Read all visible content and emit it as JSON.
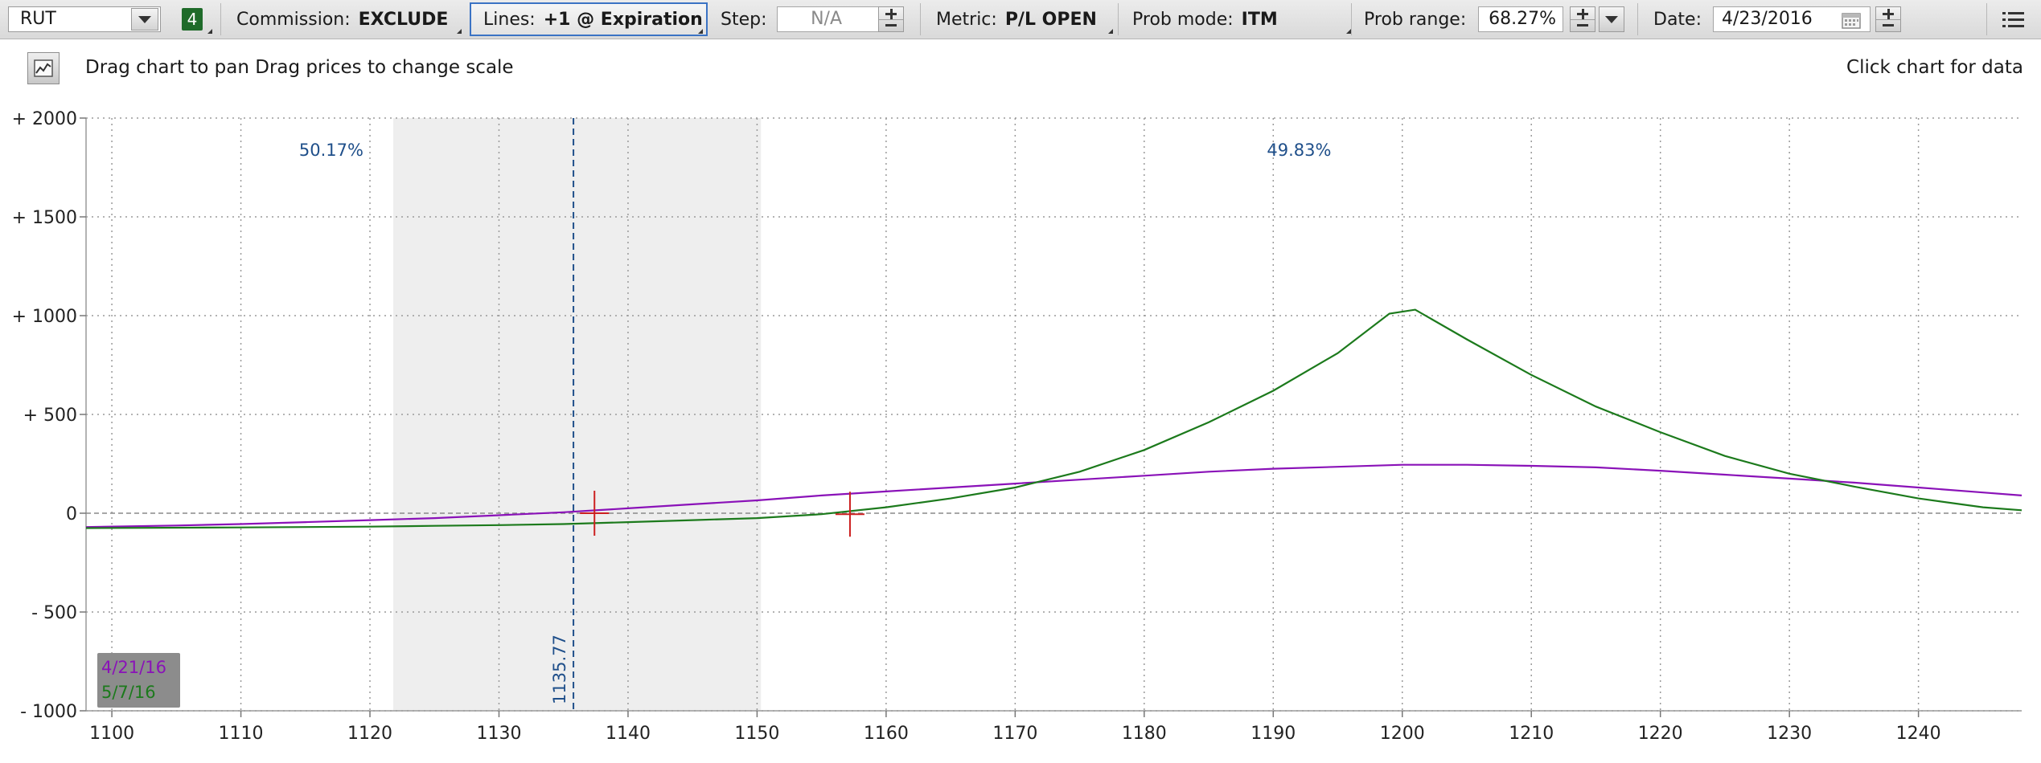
{
  "toolbar": {
    "symbol": "RUT",
    "badge": "4",
    "commission_label": "Commission:",
    "commission_value": "EXCLUDE",
    "lines_label": "Lines:",
    "lines_value": "+1 @ Expiration",
    "step_label": "Step:",
    "step_value": "N/A",
    "metric_label": "Metric:",
    "metric_value": "P/L OPEN",
    "prob_mode_label": "Prob mode:",
    "prob_mode_value": "ITM",
    "prob_range_label": "Prob range:",
    "prob_range_value": "68.27%",
    "date_label": "Date:",
    "date_value": "4/23/2016"
  },
  "infobar": {
    "hint": "Drag chart to pan Drag prices to change scale",
    "click_hint": "Click chart for data"
  },
  "colors": {
    "series_1": "#8a12b8",
    "series_2": "#1c7a1c",
    "marker": "#cc2020",
    "price_line": "#1f4f8a",
    "shade": "#eeeeee",
    "legend_bg": "#8c8c8c"
  },
  "chart_data": {
    "type": "line",
    "xlim": [
      1098,
      1248
    ],
    "ylim": [
      -1000,
      2000
    ],
    "x_ticks": [
      1100,
      1110,
      1120,
      1130,
      1140,
      1150,
      1160,
      1170,
      1180,
      1190,
      1200,
      1210,
      1220,
      1230,
      1240
    ],
    "y_ticks": [
      {
        "value": 2000,
        "label": "+ 2000"
      },
      {
        "value": 1500,
        "label": "+ 1500"
      },
      {
        "value": 1000,
        "label": "+ 1000"
      },
      {
        "value": 500,
        "label": "+ 500"
      },
      {
        "value": 0,
        "label": "0"
      },
      {
        "value": -500,
        "label": "- 500"
      },
      {
        "value": -1000,
        "label": "- 1000"
      }
    ],
    "grid": true,
    "shaded_range": [
      1121.8,
      1150.3
    ],
    "price_line": {
      "x": 1135.77,
      "label": "1135.77"
    },
    "probabilities": [
      {
        "label": "50.17%",
        "x": 1117
      },
      {
        "label": "49.83%",
        "x": 1192
      }
    ],
    "markers": [
      {
        "x": 1137.4,
        "y": 0
      },
      {
        "x": 1157.2,
        "y": -5
      }
    ],
    "series": [
      {
        "name": "4/21/16",
        "x": [
          1098,
          1105,
          1110,
          1115,
          1120,
          1125,
          1130,
          1135,
          1140,
          1145,
          1150,
          1155,
          1160,
          1165,
          1170,
          1175,
          1180,
          1185,
          1190,
          1195,
          1200,
          1205,
          1210,
          1215,
          1220,
          1225,
          1230,
          1235,
          1240,
          1245,
          1248
        ],
        "y": [
          -70,
          -62,
          -55,
          -45,
          -35,
          -25,
          -10,
          5,
          25,
          45,
          65,
          90,
          110,
          130,
          150,
          170,
          190,
          210,
          225,
          235,
          245,
          245,
          240,
          232,
          215,
          195,
          175,
          155,
          130,
          105,
          90
        ]
      },
      {
        "name": "5/7/16",
        "x": [
          1098,
          1110,
          1120,
          1125,
          1130,
          1135,
          1140,
          1145,
          1150,
          1155,
          1160,
          1165,
          1170,
          1175,
          1180,
          1185,
          1190,
          1195,
          1199,
          1201,
          1205,
          1210,
          1215,
          1220,
          1225,
          1230,
          1235,
          1240,
          1245,
          1248
        ],
        "y": [
          -75,
          -72,
          -68,
          -64,
          -60,
          -55,
          -45,
          -35,
          -25,
          -5,
          30,
          75,
          130,
          210,
          320,
          460,
          620,
          810,
          1010,
          1030,
          880,
          700,
          540,
          410,
          290,
          200,
          135,
          75,
          30,
          15
        ]
      }
    ]
  }
}
